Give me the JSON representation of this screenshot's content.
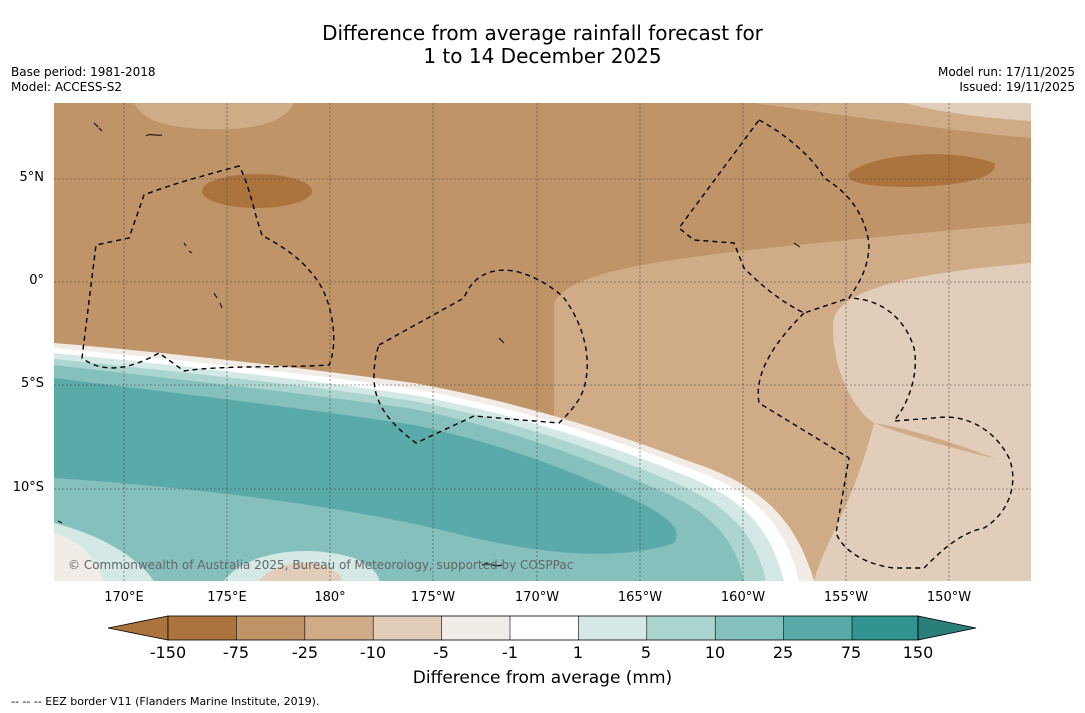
{
  "title": {
    "line1": "Difference from average rainfall forecast for",
    "line2": "1 to 14 December 2025"
  },
  "meta": {
    "base_period": "Base period: 1981-2018",
    "model": "Model: ACCESS-S2",
    "model_run": "Model run: 17/11/2025",
    "issued": "Issued: 19/11/2025"
  },
  "map": {
    "latitude_labels": [
      "5°N",
      "0°",
      "5°S",
      "10°S"
    ],
    "longitude_labels": [
      "170°E",
      "175°E",
      "180°",
      "175°W",
      "170°W",
      "165°W",
      "160°W",
      "155°W",
      "150°W"
    ],
    "copyright": "© Commonwealth of Australia 2025, Bureau of Meteorology, supported by COSPPac"
  },
  "colorbar": {
    "title": "Difference from average (mm)",
    "ticks": [
      "-150",
      "-75",
      "-25",
      "-10",
      "-5",
      "-1",
      "1",
      "5",
      "10",
      "25",
      "75",
      "150"
    ],
    "colors": [
      "#ab733d",
      "#be9468",
      "#cfac87",
      "#e1cdb9",
      "#f1ece6",
      "#ffffff",
      "#d4e9e6",
      "#acd5d0",
      "#86c0bc",
      "#5aaaaa",
      "#31948f",
      "#2b7f7a"
    ]
  },
  "footnote": "-- -- -- EEZ border V11 (Flanders Marine Institute, 2019)."
}
